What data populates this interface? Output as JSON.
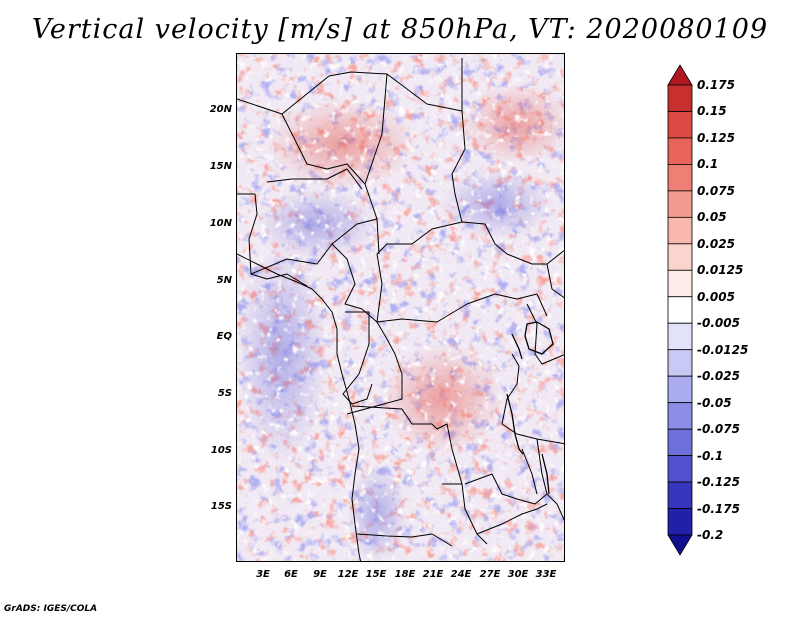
{
  "title": "Vertical velocity [m/s] at 850hPa, VT: 2020080109",
  "credit": "GrADS: IGES/COLA",
  "latitude_labels": [
    "20N",
    "15N",
    "10N",
    "5N",
    "EQ",
    "5S",
    "10S",
    "15S"
  ],
  "longitude_labels": [
    "3E",
    "6E",
    "9E",
    "12E",
    "15E",
    "18E",
    "21E",
    "24E",
    "27E",
    "30E",
    "33E"
  ],
  "colorbar": {
    "labels": [
      "0.175",
      "0.15",
      "0.125",
      "0.1",
      "0.075",
      "0.05",
      "0.025",
      "0.0125",
      "0.005",
      "-0.005",
      "-0.0125",
      "-0.025",
      "-0.05",
      "-0.075",
      "-0.1",
      "-0.125",
      "-0.175",
      "-0.2"
    ],
    "colors": [
      "#b0171f",
      "#c8302f",
      "#dc4a44",
      "#e8635a",
      "#ef7f74",
      "#f49a8e",
      "#f8b8ae",
      "#fbd4cd",
      "#fdebe8",
      "#ffffff",
      "#e2e2fb",
      "#c9c9f6",
      "#ababef",
      "#8d8de6",
      "#6f6fdc",
      "#5252ce",
      "#3636bd",
      "#2020a8",
      "#10108f"
    ]
  },
  "field": {
    "positive_color": "#e8635a",
    "negative_color": "#6f6fdc",
    "note_regions": "red-dominant over Congo basin and Sahel; blue-dominant over Atlantic and Chad"
  }
}
